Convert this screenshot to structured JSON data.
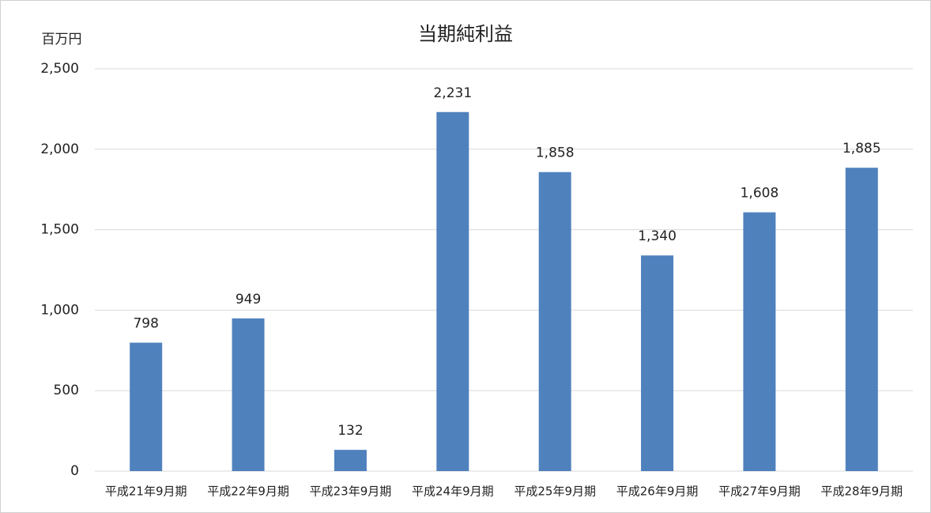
{
  "chart_data": {
    "type": "bar",
    "title": "当期純利益",
    "y_label": "百万円",
    "categories": [
      "平成21年9月期",
      "平成22年9月期",
      "平成23年9月期",
      "平成24年9月期",
      "平成25年9月期",
      "平成26年9月期",
      "平成27年9月期",
      "平成28年9月期"
    ],
    "values": [
      798,
      949,
      132,
      2231,
      1858,
      1340,
      1608,
      1885
    ],
    "value_labels": [
      "798",
      "949",
      "132",
      "2,231",
      "1,858",
      "1,340",
      "1,608",
      "1,885"
    ],
    "color": "#4f81bd",
    "ylim": [
      0,
      2500
    ],
    "yticks": [
      0,
      500,
      {
        "value": 1000,
        "label": "1,000"
      },
      {
        "value": 1500,
        "label": "1,500"
      },
      {
        "value": 2000,
        "label": "2,000"
      },
      {
        "value": 2500,
        "label": "2,500"
      }
    ],
    "grid": true
  }
}
